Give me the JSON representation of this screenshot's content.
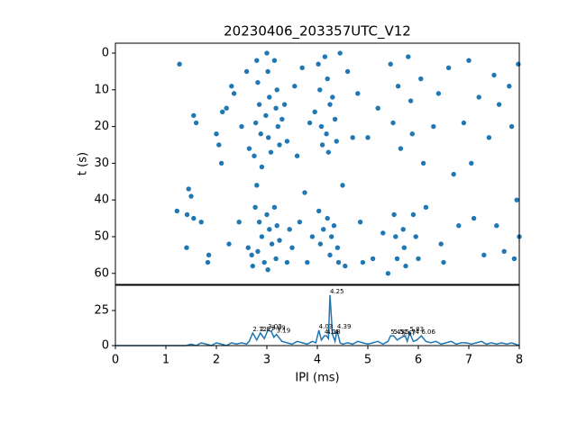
{
  "chart_data": [
    {
      "type": "scatter",
      "title": "20230406_203357UTC_V12",
      "y_label": "t (s)",
      "color": "#1f77b4",
      "x": [
        1.27,
        1.45,
        1.5,
        1.55,
        1.6,
        1.22,
        1.42,
        1.55,
        1.7,
        1.41,
        1.85,
        1.83,
        2.0,
        2.05,
        2.1,
        2.12,
        2.2,
        2.25,
        2.3,
        2.35,
        2.45,
        2.5,
        2.6,
        2.65,
        2.63,
        2.7,
        2.72,
        2.8,
        2.82,
        2.85,
        2.78,
        2.88,
        2.75,
        2.9,
        2.8,
        2.77,
        2.85,
        2.9,
        2.82,
        2.95,
        3.0,
        3.02,
        3.05,
        2.98,
        3.03,
        3.08,
        3.0,
        3.05,
        3.1,
        3.02,
        3.15,
        3.2,
        3.18,
        3.22,
        3.25,
        3.15,
        3.2,
        3.25,
        3.18,
        3.3,
        3.35,
        3.4,
        3.45,
        3.5,
        3.4,
        3.55,
        3.6,
        3.65,
        3.7,
        3.75,
        3.8,
        3.85,
        3.9,
        3.95,
        4.02,
        4.05,
        4.08,
        4.1,
        4.03,
        4.12,
        4.06,
        4.15,
        4.2,
        4.25,
        4.18,
        4.22,
        4.2,
        4.28,
        4.25,
        4.3,
        4.35,
        4.38,
        4.33,
        4.4,
        4.42,
        4.45,
        4.5,
        4.55,
        4.6,
        4.7,
        4.8,
        4.85,
        4.9,
        5.0,
        5.1,
        5.2,
        5.3,
        5.4,
        5.45,
        5.5,
        5.52,
        5.55,
        5.58,
        5.6,
        5.65,
        5.7,
        5.72,
        5.75,
        5.8,
        5.85,
        5.88,
        5.9,
        5.95,
        6.0,
        6.05,
        6.1,
        6.15,
        6.3,
        6.4,
        6.45,
        6.5,
        6.6,
        6.7,
        6.8,
        6.9,
        7.0,
        7.05,
        7.1,
        7.2,
        7.3,
        7.4,
        7.5,
        7.55,
        7.6,
        7.7,
        7.8,
        7.85,
        7.9,
        7.98,
        7.95,
        8.0
      ],
      "y": [
        3,
        37,
        39,
        17,
        19,
        43,
        44,
        45,
        46,
        53,
        55,
        57,
        22,
        25,
        30,
        16,
        15,
        52,
        9,
        11,
        46,
        20,
        5,
        26,
        53,
        55,
        58,
        2,
        8,
        14,
        19,
        22,
        28,
        31,
        36,
        42,
        46,
        50,
        54,
        57,
        0,
        5,
        12,
        17,
        23,
        27,
        44,
        48,
        52,
        59,
        2,
        10,
        15,
        20,
        25,
        42,
        47,
        51,
        56,
        18,
        14,
        24,
        48,
        53,
        57,
        9,
        28,
        46,
        4,
        38,
        57,
        19,
        50,
        16,
        3,
        10,
        20,
        25,
        43,
        48,
        52,
        1,
        7,
        14,
        22,
        27,
        45,
        50,
        55,
        12,
        18,
        24,
        47,
        53,
        57,
        0,
        36,
        58,
        5,
        23,
        11,
        46,
        57,
        23,
        56,
        15,
        49,
        60,
        3,
        19,
        44,
        50,
        56,
        9,
        26,
        48,
        53,
        58,
        1,
        13,
        22,
        44,
        50,
        56,
        7,
        30,
        42,
        20,
        11,
        52,
        57,
        4,
        33,
        47,
        19,
        2,
        30,
        45,
        12,
        55,
        23,
        6,
        47,
        14,
        54,
        9,
        20,
        56,
        3,
        40,
        50
      ],
      "xlim": [
        0,
        8
      ],
      "ylim": [
        63,
        -2.7
      ],
      "yticks": [
        0,
        10,
        20,
        30,
        40,
        50,
        60
      ]
    },
    {
      "type": "line",
      "x_label": "IPI (ms)",
      "color": "#1f77b4",
      "x": [
        0,
        1.0,
        1.4,
        1.5,
        1.6,
        1.7,
        1.8,
        1.9,
        2.0,
        2.1,
        2.2,
        2.3,
        2.4,
        2.5,
        2.6,
        2.65,
        2.72,
        2.8,
        2.87,
        2.95,
        3.02,
        3.09,
        3.14,
        3.19,
        3.3,
        3.4,
        3.5,
        3.6,
        3.7,
        3.8,
        3.9,
        3.97,
        4.03,
        4.08,
        4.14,
        4.18,
        4.22,
        4.25,
        4.3,
        4.35,
        4.39,
        4.45,
        4.5,
        4.6,
        4.7,
        4.8,
        4.9,
        5.0,
        5.1,
        5.2,
        5.3,
        5.4,
        5.45,
        5.51,
        5.58,
        5.67,
        5.74,
        5.78,
        5.83,
        5.9,
        5.97,
        6.06,
        6.15,
        6.25,
        6.35,
        6.45,
        6.55,
        6.65,
        6.75,
        6.85,
        6.95,
        7.05,
        7.15,
        7.25,
        7.35,
        7.45,
        7.55,
        7.65,
        7.75,
        7.85,
        8.0
      ],
      "values": [
        0,
        0,
        0,
        1,
        0,
        2,
        1,
        0,
        2,
        1,
        0,
        2,
        1,
        2,
        1,
        3,
        9,
        4,
        9,
        5,
        11,
        10,
        6,
        8,
        3,
        2,
        1,
        3,
        2,
        1,
        3,
        2,
        11,
        4,
        7,
        7,
        5,
        36,
        8,
        3,
        11,
        2,
        1,
        2,
        1,
        3,
        2,
        1,
        2,
        3,
        1,
        3,
        7,
        7,
        4,
        6,
        7,
        3,
        9,
        3,
        4,
        7,
        3,
        2,
        3,
        1,
        2,
        3,
        1,
        2,
        2,
        1,
        2,
        3,
        1,
        2,
        1,
        2,
        1,
        2,
        0
      ],
      "peaks": [
        {
          "x": 2.72,
          "y": 9
        },
        {
          "x": 2.87,
          "y": 9
        },
        {
          "x": 3.02,
          "y": 11
        },
        {
          "x": 3.09,
          "y": 10
        },
        {
          "x": 3.19,
          "y": 8
        },
        {
          "x": 4.03,
          "y": 11
        },
        {
          "x": 4.14,
          "y": 7
        },
        {
          "x": 4.18,
          "y": 7
        },
        {
          "x": 4.25,
          "y": 36
        },
        {
          "x": 4.39,
          "y": 11
        },
        {
          "x": 5.45,
          "y": 7
        },
        {
          "x": 5.51,
          "y": 7
        },
        {
          "x": 5.67,
          "y": 6
        },
        {
          "x": 5.74,
          "y": 7
        },
        {
          "x": 5.83,
          "y": 9
        },
        {
          "x": 6.06,
          "y": 7
        }
      ],
      "xlim": [
        0,
        8
      ],
      "ylim": [
        0,
        43
      ],
      "xticks": [
        0,
        1,
        2,
        3,
        4,
        5,
        6,
        7,
        8
      ],
      "yticks": [
        0,
        25
      ]
    }
  ]
}
